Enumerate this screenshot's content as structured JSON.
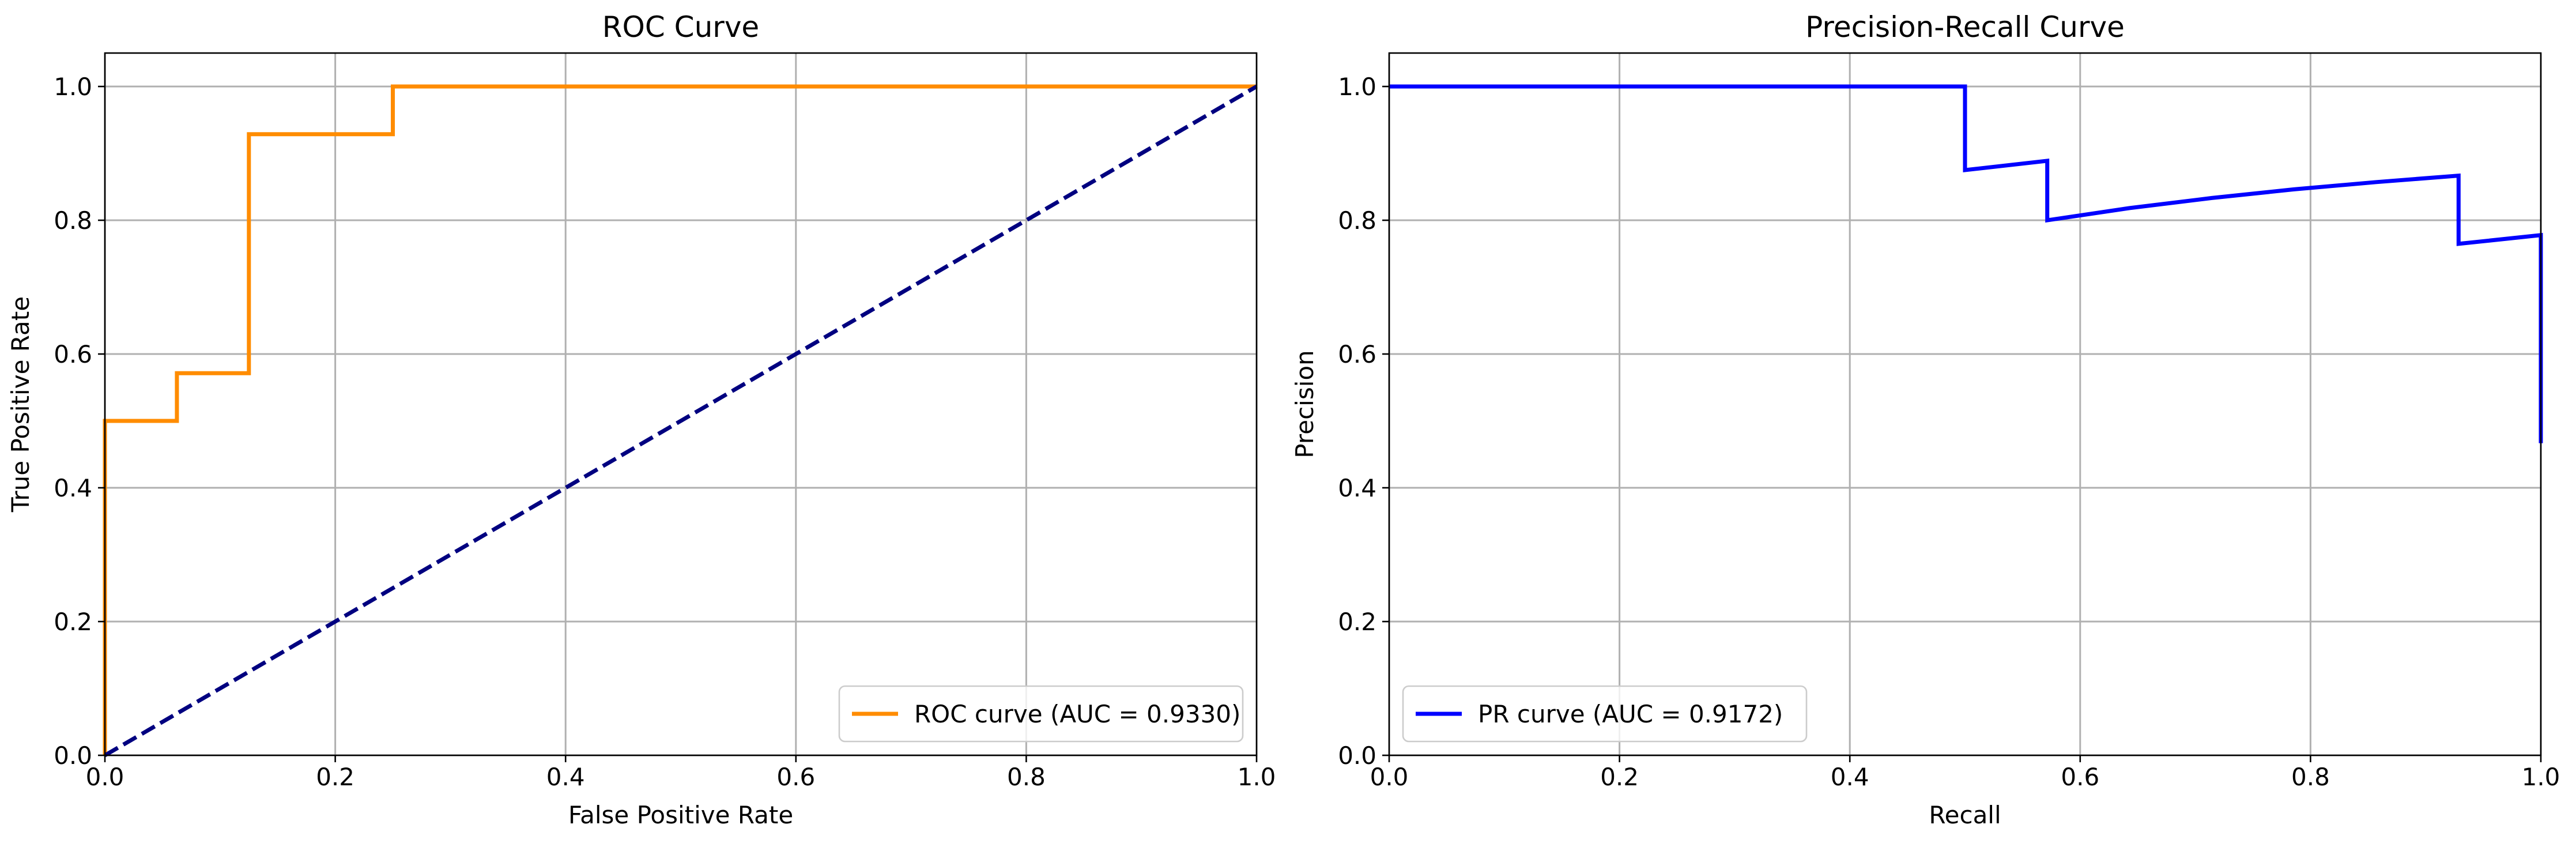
{
  "chart_data": [
    {
      "type": "line",
      "title": "ROC Curve",
      "xlabel": "False Positive Rate",
      "ylabel": "True Positive Rate",
      "xlim": [
        0.0,
        1.0
      ],
      "ylim": [
        0.0,
        1.05
      ],
      "xticks": [
        "0.0",
        "0.2",
        "0.4",
        "0.6",
        "0.8",
        "1.0"
      ],
      "yticks": [
        "0.0",
        "0.2",
        "0.4",
        "0.6",
        "0.8",
        "1.0"
      ],
      "grid": true,
      "legend_position": "lower right",
      "series": [
        {
          "name": "ROC curve (AUC = 0.9330)",
          "color": "#ff8c00",
          "style": "solid",
          "x": [
            0.0,
            0.0,
            0.0,
            0.0625,
            0.0625,
            0.125,
            0.125,
            0.25,
            0.25,
            1.0
          ],
          "y": [
            0.0,
            0.0714,
            0.5,
            0.5,
            0.5714,
            0.5714,
            0.9286,
            0.9286,
            1.0,
            1.0
          ]
        },
        {
          "name": "",
          "color": "#000080",
          "style": "dashed",
          "x": [
            0.0,
            1.0
          ],
          "y": [
            0.0,
            1.0
          ]
        }
      ]
    },
    {
      "type": "line",
      "title": "Precision-Recall Curve",
      "xlabel": "Recall",
      "ylabel": "Precision",
      "xlim": [
        0.0,
        1.0
      ],
      "ylim": [
        0.0,
        1.05
      ],
      "xticks": [
        "0.0",
        "0.2",
        "0.4",
        "0.6",
        "0.8",
        "1.0"
      ],
      "yticks": [
        "0.0",
        "0.2",
        "0.4",
        "0.6",
        "0.8",
        "1.0"
      ],
      "grid": true,
      "legend_position": "lower left",
      "series": [
        {
          "name": "PR curve (AUC = 0.9172)",
          "color": "#0000ff",
          "style": "solid",
          "x": [
            0.0,
            0.5,
            0.5,
            0.5714,
            0.5714,
            0.6429,
            0.7143,
            0.7857,
            0.8571,
            0.9286,
            0.9286,
            1.0,
            1.0
          ],
          "y": [
            1.0,
            1.0,
            0.875,
            0.8889,
            0.8,
            0.8182,
            0.8333,
            0.8462,
            0.8571,
            0.8667,
            0.7647,
            0.7778,
            0.4667
          ]
        }
      ]
    }
  ]
}
